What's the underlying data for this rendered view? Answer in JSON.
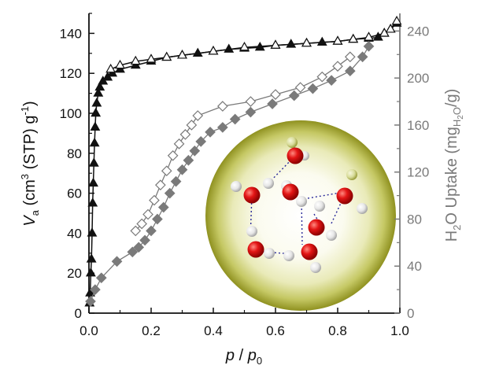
{
  "chart_data": {
    "type": "scatter",
    "x_axis": {
      "label_main": "p",
      "label_sep": " / ",
      "label_sub_base": "p",
      "label_sub": "0",
      "range": [
        0.0,
        1.0
      ],
      "ticks": [
        0.0,
        0.2,
        0.4,
        0.6,
        0.8,
        1.0
      ],
      "tick_labels": [
        "0.0",
        "0.2",
        "0.4",
        "0.6",
        "0.8",
        "1.0"
      ]
    },
    "y_left_axis": {
      "label": {
        "var": "V",
        "var_sub": "a",
        "open": " (cm",
        "sup": "3",
        "middle": " (STP) g",
        "sup2": "-1",
        "close": ")"
      },
      "range": [
        0,
        150
      ],
      "ticks": [
        0,
        20,
        40,
        60,
        80,
        100,
        120,
        140
      ],
      "tick_labels": [
        "0",
        "20",
        "40",
        "60",
        "80",
        "100",
        "120",
        "140"
      ],
      "color": "#111111"
    },
    "y_right_axis": {
      "label": {
        "part1": "H",
        "sub1": "2",
        "part2": "O Uptake (mg",
        "sub2_main": "H",
        "sub2_sub": "2",
        "sub2_tail": "O",
        "part3": "/g)"
      },
      "range": [
        0,
        255
      ],
      "ticks": [
        0,
        40,
        80,
        120,
        160,
        200,
        240
      ],
      "tick_labels": [
        "0",
        "40",
        "80",
        "120",
        "160",
        "200",
        "240"
      ],
      "color": "#7a7a7a"
    },
    "series": [
      {
        "axis": "left",
        "marker": "triangle",
        "filled": true,
        "color": "#111111",
        "points": [
          [
            0.002,
            5
          ],
          [
            0.004,
            10
          ],
          [
            0.006,
            20
          ],
          [
            0.008,
            27
          ],
          [
            0.01,
            40
          ],
          [
            0.012,
            55
          ],
          [
            0.014,
            65
          ],
          [
            0.016,
            75
          ],
          [
            0.018,
            85
          ],
          [
            0.02,
            93
          ],
          [
            0.022,
            100
          ],
          [
            0.025,
            105
          ],
          [
            0.03,
            110
          ],
          [
            0.035,
            113
          ],
          [
            0.045,
            116
          ],
          [
            0.06,
            118
          ],
          [
            0.075,
            120
          ],
          [
            0.1,
            122
          ],
          [
            0.15,
            124
          ],
          [
            0.2,
            126
          ],
          [
            0.25,
            128
          ],
          [
            0.3,
            129
          ],
          [
            0.35,
            130
          ],
          [
            0.4,
            131
          ],
          [
            0.45,
            132
          ],
          [
            0.5,
            132.5
          ],
          [
            0.55,
            133
          ],
          [
            0.6,
            134
          ],
          [
            0.65,
            134.5
          ],
          [
            0.7,
            135
          ],
          [
            0.75,
            135.5
          ],
          [
            0.8,
            136
          ],
          [
            0.85,
            137
          ],
          [
            0.9,
            137.5
          ],
          [
            0.93,
            138
          ],
          [
            0.95,
            140
          ],
          [
            0.97,
            142
          ],
          [
            0.99,
            145
          ]
        ]
      },
      {
        "axis": "left",
        "marker": "triangle",
        "filled": false,
        "color": "#111111",
        "points": [
          [
            0.99,
            146
          ],
          [
            0.97,
            142
          ],
          [
            0.95,
            140
          ],
          [
            0.9,
            138
          ],
          [
            0.85,
            137
          ],
          [
            0.8,
            136
          ],
          [
            0.7,
            135
          ],
          [
            0.6,
            134
          ],
          [
            0.5,
            133
          ],
          [
            0.4,
            131
          ],
          [
            0.3,
            129
          ],
          [
            0.25,
            128
          ],
          [
            0.2,
            127
          ],
          [
            0.15,
            126
          ],
          [
            0.1,
            124
          ],
          [
            0.07,
            122
          ]
        ]
      },
      {
        "axis": "right",
        "marker": "diamond",
        "filled": true,
        "color": "#7a7a7a",
        "points": [
          [
            0.005,
            10
          ],
          [
            0.02,
            20
          ],
          [
            0.04,
            30
          ],
          [
            0.09,
            44
          ],
          [
            0.14,
            52
          ],
          [
            0.16,
            56
          ],
          [
            0.18,
            62
          ],
          [
            0.2,
            70
          ],
          [
            0.22,
            80
          ],
          [
            0.24,
            90
          ],
          [
            0.26,
            102
          ],
          [
            0.28,
            112
          ],
          [
            0.3,
            122
          ],
          [
            0.32,
            130
          ],
          [
            0.34,
            138
          ],
          [
            0.36,
            146
          ],
          [
            0.39,
            154
          ],
          [
            0.43,
            158
          ],
          [
            0.47,
            165
          ],
          [
            0.52,
            171
          ],
          [
            0.59,
            178
          ],
          [
            0.66,
            185
          ],
          [
            0.72,
            191
          ],
          [
            0.78,
            198
          ],
          [
            0.84,
            206
          ],
          [
            0.88,
            218
          ],
          [
            0.9,
            227
          ]
        ]
      },
      {
        "axis": "right",
        "marker": "diamond",
        "filled": false,
        "color": "#7a7a7a",
        "points": [
          [
            0.15,
            70
          ],
          [
            0.17,
            76
          ],
          [
            0.19,
            84
          ],
          [
            0.21,
            96
          ],
          [
            0.23,
            109
          ],
          [
            0.25,
            121
          ],
          [
            0.27,
            134
          ],
          [
            0.29,
            144
          ],
          [
            0.31,
            152
          ],
          [
            0.33,
            160
          ],
          [
            0.35,
            168
          ],
          [
            0.43,
            176
          ],
          [
            0.52,
            180
          ],
          [
            0.6,
            186
          ],
          [
            0.68,
            192
          ],
          [
            0.75,
            201
          ],
          [
            0.8,
            210
          ],
          [
            0.84,
            218
          ]
        ]
      }
    ]
  }
}
